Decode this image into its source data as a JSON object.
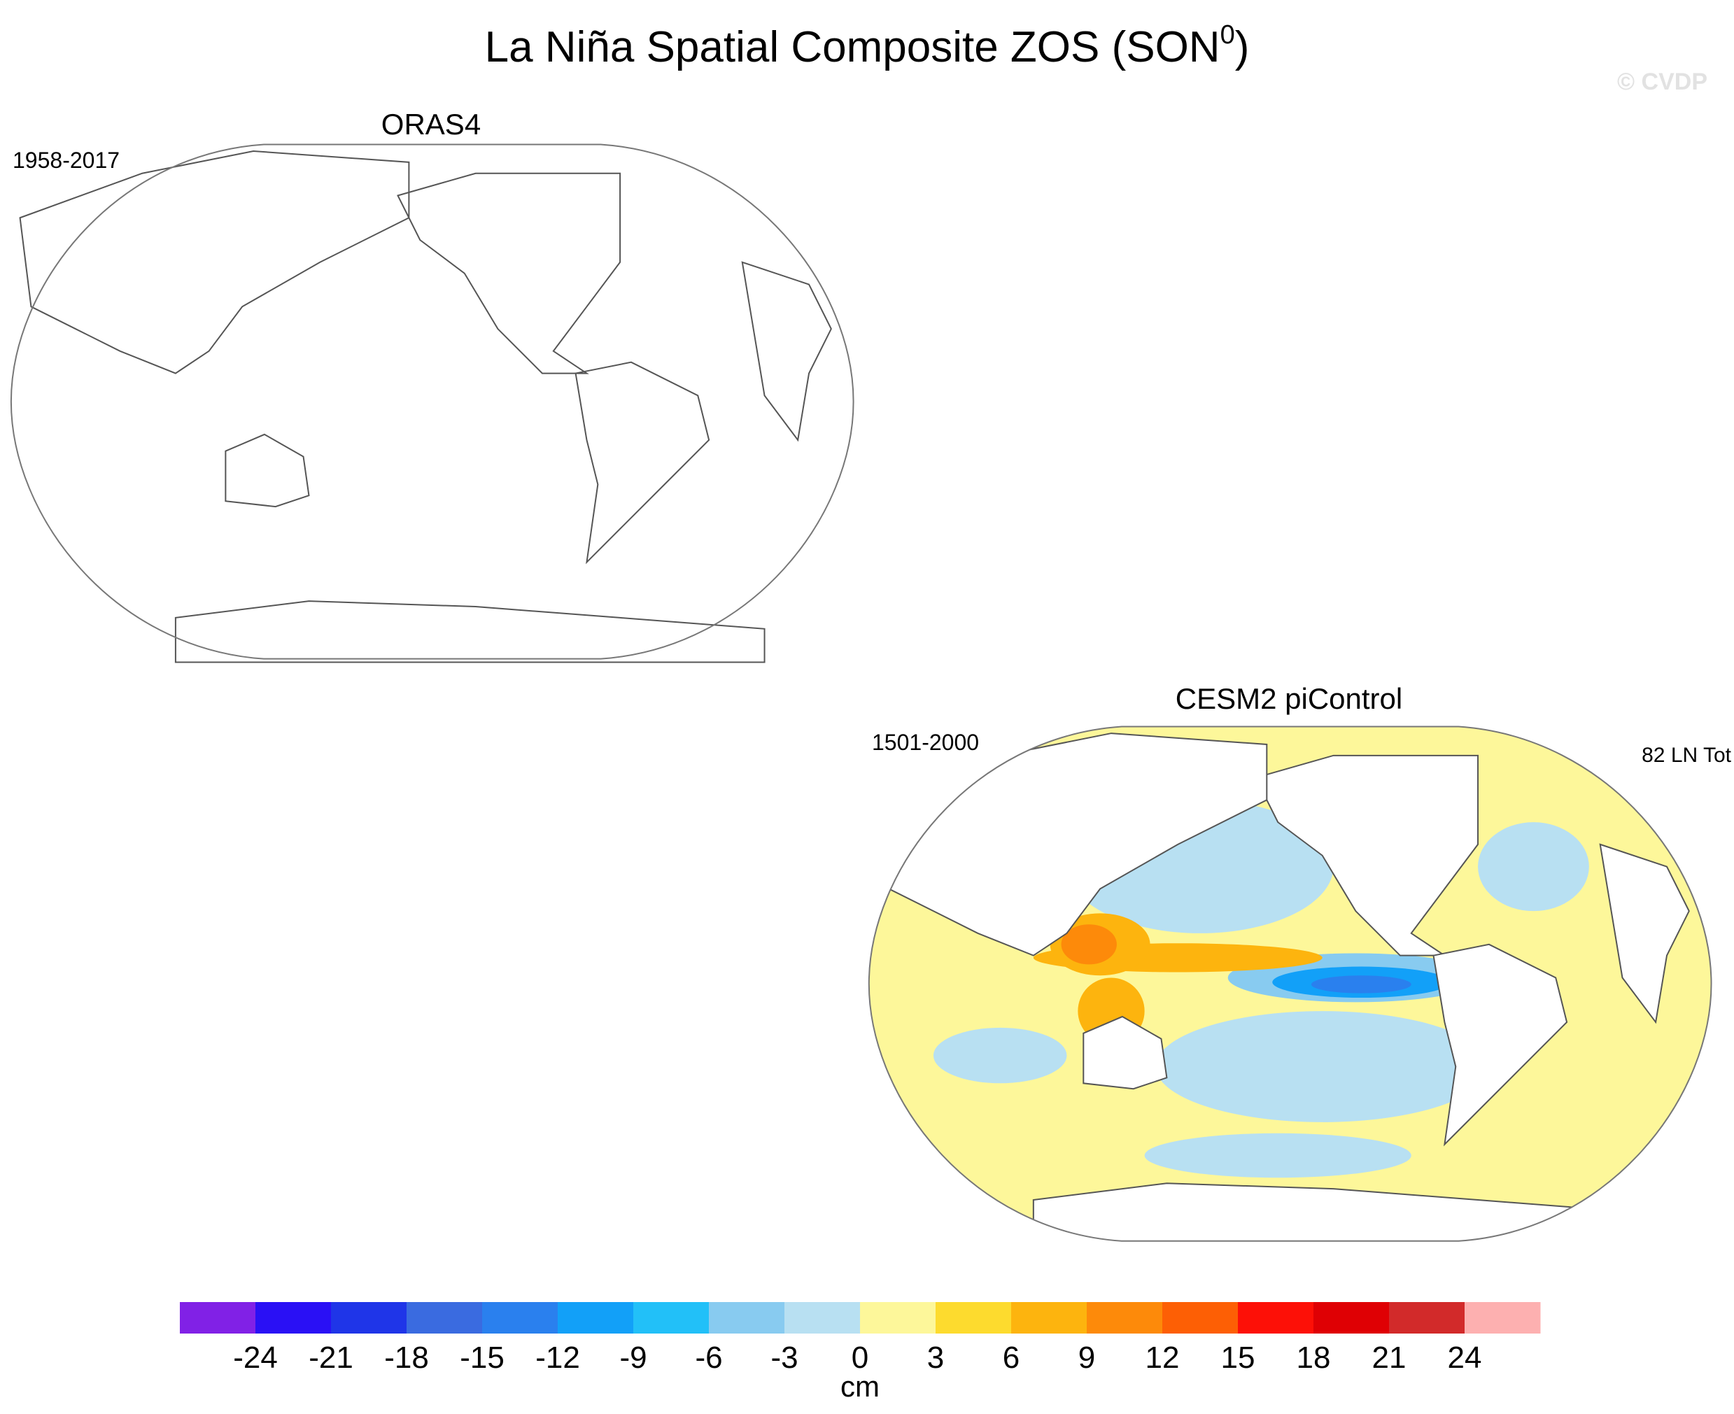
{
  "title": {
    "text": "La Niña Spatial Composite ZOS (SON",
    "superscript": "0",
    "close": ")"
  },
  "watermark": "© CVDP",
  "panels": [
    {
      "title": "ORAS4",
      "period": "1958-2017"
    },
    {
      "title": "CESM2 piControl",
      "period": "1501-2000",
      "note": "82 LN Tot"
    }
  ],
  "colorbar": {
    "levels": [
      -24,
      -21,
      -18,
      -15,
      -12,
      -9,
      -6,
      -3,
      0,
      3,
      6,
      9,
      12,
      15,
      18,
      21,
      24
    ],
    "colors": [
      "#8121e6",
      "#2a10f5",
      "#1f35e8",
      "#3a6be0",
      "#2a80ee",
      "#12a0f8",
      "#22c0f8",
      "#88cbf0",
      "#b8e0f2",
      "#fdf79a",
      "#fddb2e",
      "#fdb40e",
      "#fd8a0a",
      "#fd5f05",
      "#fd1007",
      "#df0004",
      "#d22a2a",
      "#fdb0b0"
    ],
    "units": "cm"
  }
}
